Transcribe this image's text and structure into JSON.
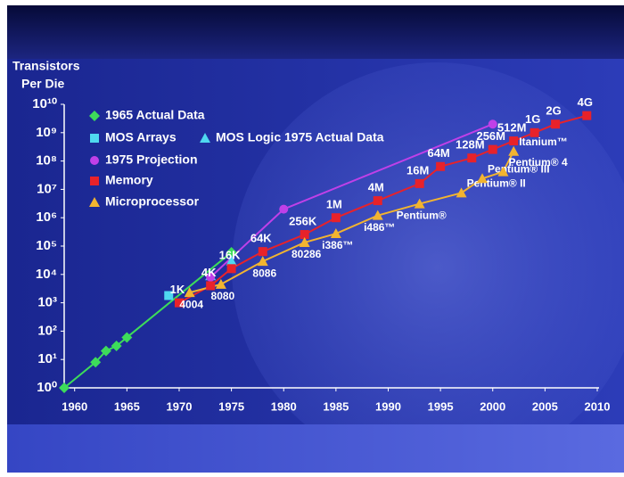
{
  "chart_data": {
    "type": "line",
    "y_label": [
      "Transistors",
      "Per Die"
    ],
    "log_scale": true,
    "xlim": [
      1959,
      2010
    ],
    "xticks": [
      1960,
      1965,
      1970,
      1975,
      1980,
      1985,
      1990,
      1995,
      2000,
      2005,
      2010
    ],
    "ylim": [
      1,
      10000000000
    ],
    "yticks": [
      {
        "value": 1,
        "label": "10⁰"
      },
      {
        "value": 10,
        "label": "10¹"
      },
      {
        "value": 100,
        "label": "10²"
      },
      {
        "value": 1000,
        "label": "10³"
      },
      {
        "value": 10000,
        "label": "10⁴"
      },
      {
        "value": 100000,
        "label": "10⁵"
      },
      {
        "value": 1000000,
        "label": "10⁶"
      },
      {
        "value": 10000000,
        "label": "10⁷"
      },
      {
        "value": 100000000,
        "label": "10⁸"
      },
      {
        "value": 1000000000,
        "label": "10⁹"
      },
      {
        "value": 10000000000,
        "label": "10¹⁰"
      }
    ],
    "series": [
      {
        "name": "1965 Actual Data",
        "color": "#3ddc5a",
        "marker": "diamond",
        "line": true,
        "x": [
          1959,
          1962,
          1963,
          1964,
          1965,
          1975
        ],
        "values": [
          1,
          8,
          20,
          30,
          60,
          60000
        ]
      },
      {
        "name": "MOS Arrays",
        "color": "#4fd8f0",
        "marker": "square",
        "line": false,
        "x": [
          1969
        ],
        "values": [
          1800
        ]
      },
      {
        "name": "MOS Logic 1975 Actual Data",
        "color": "#4fd8f0",
        "marker": "triangle",
        "line": false,
        "x": [
          1973,
          1975
        ],
        "values": [
          9000,
          30000
        ]
      },
      {
        "name": "1975 Projection",
        "color": "#c040e8",
        "marker": "circle",
        "line": true,
        "x": [
          1973,
          1980,
          2000
        ],
        "values": [
          8000,
          2000000,
          2000000000
        ]
      },
      {
        "name": "Memory",
        "color": "#e8222a",
        "marker": "square",
        "line": true,
        "x": [
          1970,
          1973,
          1975,
          1978,
          1982,
          1985,
          1989,
          1993,
          1995,
          1998,
          2000,
          2002,
          2004,
          2006,
          2009
        ],
        "values": [
          1000,
          4000,
          16000,
          64000,
          256000,
          1000000,
          4000000,
          16000000,
          64000000,
          128000000,
          256000000,
          512000000,
          1000000000,
          2000000000,
          4000000000
        ],
        "value_labels": [
          "1K",
          "4K",
          "16K",
          "64K",
          "256K",
          "1M",
          "4M",
          "16M",
          "64M",
          "128M",
          "256M",
          "512M",
          "1G",
          "2G",
          "4G"
        ]
      },
      {
        "name": "Microprocessor",
        "color": "#f2b430",
        "marker": "triangle",
        "line": true,
        "x": [
          1971,
          1974,
          1978,
          1982,
          1985,
          1989,
          1993,
          1997,
          1999,
          2001,
          2002
        ],
        "values": [
          2300,
          4500,
          29000,
          134000,
          275000,
          1200000,
          3100000,
          7500000,
          24000000,
          42000000,
          220000000
        ],
        "labels": [
          "4004",
          "8080",
          "8086",
          "80286",
          "i386™",
          "i486™",
          "Pentium®",
          "Pentium® II",
          "Pentium® III",
          "Pentium® 4",
          "Itanium™"
        ]
      }
    ]
  }
}
